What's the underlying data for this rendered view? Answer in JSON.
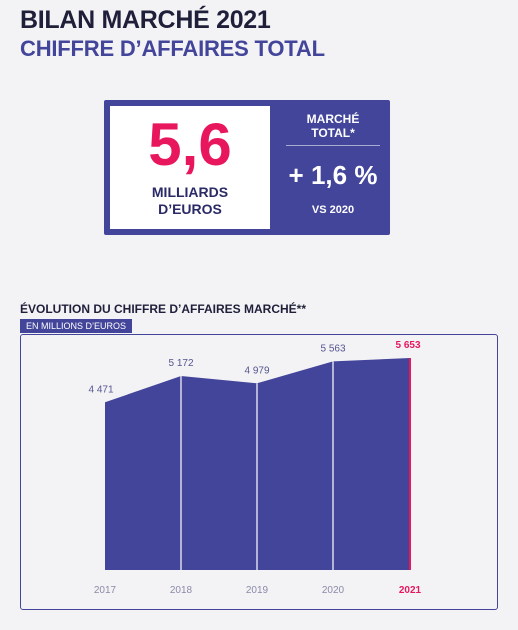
{
  "header": {
    "title": "BILAN MARCHÉ 2021",
    "subtitle": "CHIFFRE D’AFFAIRES TOTAL"
  },
  "kpi": {
    "big_value": "5,6",
    "unit": "MILLIARDS\nD’EUROS",
    "market_label": "MARCHÉ\nTOTAL*",
    "growth": "+ 1,6 %",
    "comparison": "VS 2020"
  },
  "colors": {
    "primary": "#43459a",
    "accent": "#e8175d",
    "background": "#f3f3f6"
  },
  "chart_data": {
    "type": "area",
    "title": "ÉVOLUTION DU CHIFFRE D’AFFAIRES MARCHÉ**",
    "subtitle": "EN MILLIONS D’EUROS",
    "categories": [
      "2017",
      "2018",
      "2019",
      "2020",
      "2021"
    ],
    "values": [
      4471,
      5172,
      4979,
      5563,
      5653
    ],
    "value_labels": [
      "4 471",
      "5 172",
      "4 979",
      "5 563",
      "5 653"
    ],
    "highlight": "2021",
    "ylim": [
      0,
      5653
    ],
    "grid": false,
    "legend": "none"
  }
}
